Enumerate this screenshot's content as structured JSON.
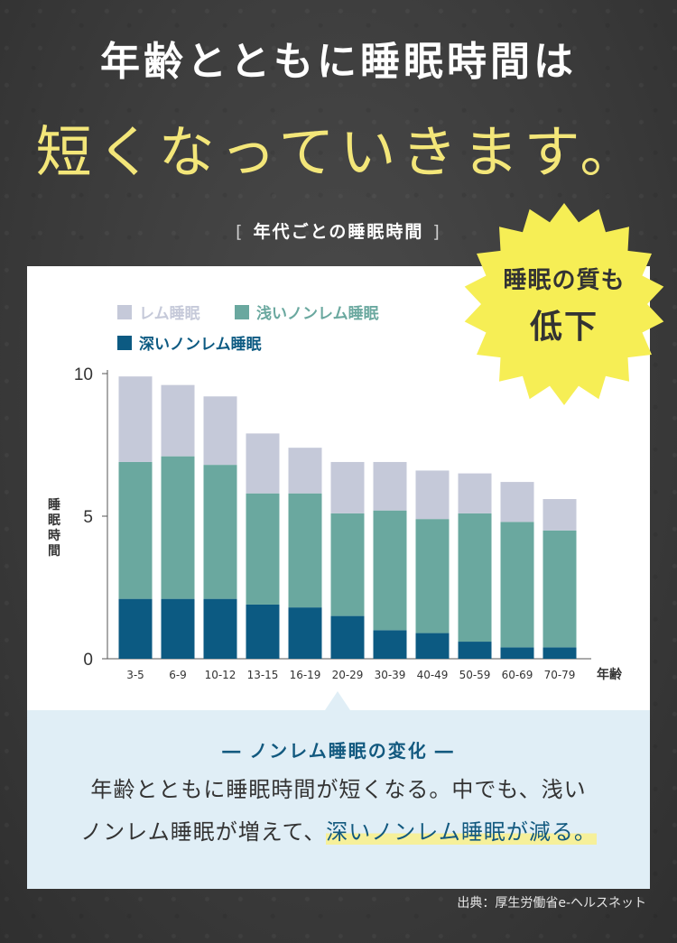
{
  "headline": {
    "line1": "年齢とともに睡眠時間は",
    "line2": "短くなっていきます。"
  },
  "subhead": {
    "bracket_open": "[",
    "text": "年代ごとの睡眠時間",
    "bracket_close": "]"
  },
  "badge": {
    "line1": "睡眠の質も",
    "line2": "低下"
  },
  "note": {
    "title_dash_left": "―",
    "title": "ノンレム睡眠の変化",
    "title_dash_right": "―",
    "line1": "年齢とともに睡眠時間が短くなる。中でも、浅い",
    "line2_plain": "ノンレム睡眠が増えて、",
    "line2_highlight": "深いノンレム睡眠が減る。"
  },
  "source": "出典：厚生労働省e-ヘルスネット",
  "colors": {
    "rem": "#c5c9d9",
    "light_nrem": "#6aa89f",
    "deep_nrem": "#0c5a82",
    "headline_accent": "#f3e679",
    "badge": "#f6ee55"
  },
  "chart_data": {
    "type": "bar",
    "stacked": true,
    "categories": [
      "3-5",
      "6-9",
      "10-12",
      "13-15",
      "16-19",
      "20-29",
      "30-39",
      "40-49",
      "50-59",
      "60-69",
      "70-79"
    ],
    "series": [
      {
        "name": "深いノンレム睡眠",
        "color": "#0c5a82",
        "values": [
          2.1,
          2.1,
          2.1,
          1.9,
          1.8,
          1.5,
          1.0,
          0.9,
          0.6,
          0.4,
          0.4
        ]
      },
      {
        "name": "浅いノンレム睡眠",
        "color": "#6aa89f",
        "values": [
          4.8,
          5.0,
          4.7,
          3.9,
          4.0,
          3.6,
          4.2,
          4.0,
          4.5,
          4.4,
          4.1
        ]
      },
      {
        "name": "レム睡眠",
        "color": "#c5c9d9",
        "values": [
          3.0,
          2.5,
          2.4,
          2.1,
          1.6,
          1.8,
          1.7,
          1.7,
          1.4,
          1.4,
          1.1
        ]
      }
    ],
    "legend_order": [
      "レム睡眠",
      "浅いノンレム睡眠",
      "深いノンレム睡眠"
    ],
    "ylabel": "睡眠時間",
    "xlabel": "年齢",
    "yticks": [
      "0",
      "5",
      "10"
    ],
    "ylim": [
      0,
      10
    ],
    "grid": false,
    "legend_position": "top-left"
  }
}
